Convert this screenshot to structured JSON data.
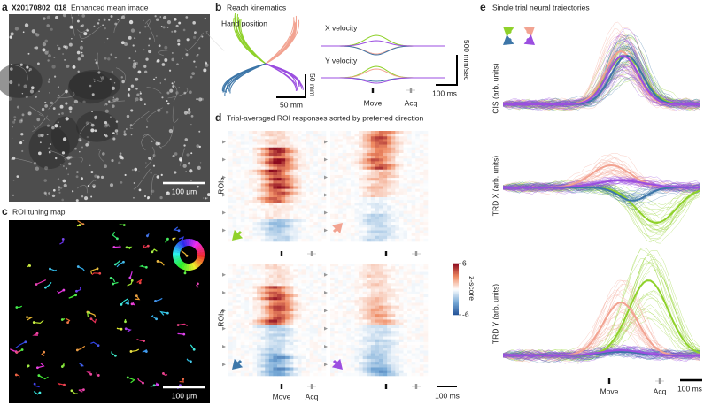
{
  "panel_a": {
    "letter": "a",
    "id": "X20170802_018",
    "title": "Enhanced mean image",
    "scalebar": "100 µm"
  },
  "panel_b": {
    "letter": "b",
    "title": "Reach kinematics",
    "hand_label": "Hand position",
    "x_velocity": "X velocity",
    "y_velocity": "Y velocity",
    "velocity_scale": "500 mm/sec",
    "time_scale": "100 ms",
    "position_scale_vertical": "50 mm",
    "position_scale_horizontal": "50 mm",
    "move": "Move",
    "acq": "Acq"
  },
  "panel_c": {
    "letter": "c",
    "title": "ROI tuning map",
    "scalebar": "100 µm"
  },
  "panel_d": {
    "letter": "d",
    "title": "Trial-averaged ROI responses sorted by preferred direction",
    "ylabel_top": "ROIs",
    "ylabel_bottom": "ROIs",
    "colorbar": {
      "label": "z-score",
      "lim": [
        -6,
        6
      ],
      "ticks": [
        6,
        -6
      ]
    },
    "move": "Move",
    "acq": "Acq",
    "time_scale": "100 ms"
  },
  "panel_e": {
    "letter": "e",
    "title": "Single trial neural trajectories",
    "ylabels": [
      "CIS (arb. units)",
      "TRD X (arb. units)",
      "TRD Y (arb. units)"
    ],
    "move": "Move",
    "acq": "Acq",
    "time_scale": "100 ms"
  }
}
